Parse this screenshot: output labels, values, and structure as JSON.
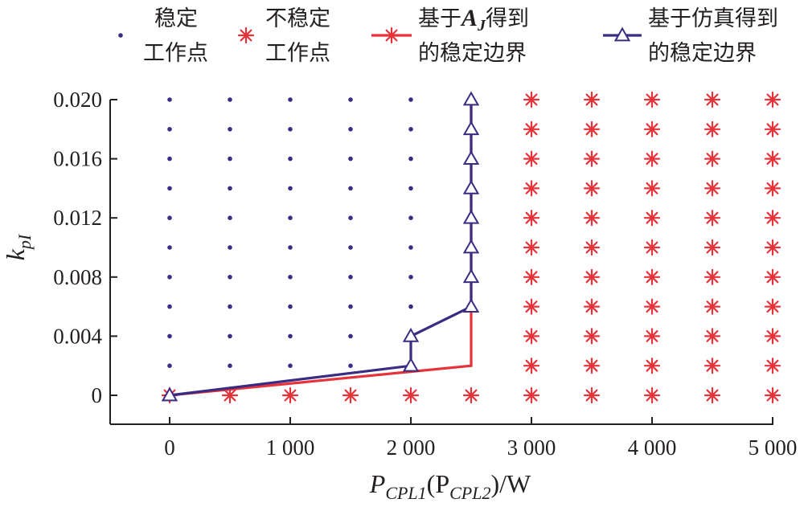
{
  "chart_data": {
    "type": "scatter",
    "title": "",
    "xlabel": {
      "main": "P",
      "sub1": "CPL1",
      "mid": "(P",
      "sub2": "CPL2",
      "tail": ")/W"
    },
    "ylabel": {
      "main": "k",
      "sub": "pI"
    },
    "xlim": [
      -500,
      5000
    ],
    "ylim": [
      -0.0017,
      0.02
    ],
    "x_ticks": [
      0,
      1000,
      2000,
      3000,
      4000,
      5000
    ],
    "x_tick_labels": [
      "0",
      "1 000",
      "2 000",
      "3 000",
      "4 000",
      "5 000"
    ],
    "y_ticks": [
      0,
      0.004,
      0.008,
      0.012,
      0.016,
      0.02
    ],
    "y_tick_labels": [
      "0",
      "0.004",
      "0.008",
      "0.012",
      "0.016",
      "0.020"
    ],
    "grid": false,
    "legend_placement": "top",
    "legend": [
      {
        "key": "stable",
        "lines": [
          "稳定",
          "工作点"
        ],
        "marker": "dot",
        "color": "#3b2c83"
      },
      {
        "key": "unstable",
        "lines": [
          "不稳定",
          "工作点"
        ],
        "marker": "asterisk",
        "color": "#e8323a"
      },
      {
        "key": "aj",
        "lines": [
          "基于A_J得到",
          "的稳定边界"
        ],
        "line1_prefix": "基于",
        "line1_math": "A",
        "line1_math_sub": "J",
        "line1_suffix": "得到",
        "line2": "的稳定边界",
        "marker": "asterisk-line",
        "color": "#e8323a"
      },
      {
        "key": "sim",
        "lines": [
          "基于仿真得到",
          "的稳定边界"
        ],
        "marker": "triangle-line",
        "color": "#3b2c83"
      }
    ],
    "series": [
      {
        "name": "稳定工作点",
        "marker": "dot",
        "color": "#3b2c83",
        "points": [
          [
            0,
            0.002
          ],
          [
            0,
            0.004
          ],
          [
            0,
            0.006
          ],
          [
            0,
            0.008
          ],
          [
            0,
            0.01
          ],
          [
            0,
            0.012
          ],
          [
            0,
            0.014
          ],
          [
            0,
            0.016
          ],
          [
            0,
            0.018
          ],
          [
            0,
            0.02
          ],
          [
            500,
            0.002
          ],
          [
            500,
            0.004
          ],
          [
            500,
            0.006
          ],
          [
            500,
            0.008
          ],
          [
            500,
            0.01
          ],
          [
            500,
            0.012
          ],
          [
            500,
            0.014
          ],
          [
            500,
            0.016
          ],
          [
            500,
            0.018
          ],
          [
            500,
            0.02
          ],
          [
            1000,
            0.002
          ],
          [
            1000,
            0.004
          ],
          [
            1000,
            0.006
          ],
          [
            1000,
            0.008
          ],
          [
            1000,
            0.01
          ],
          [
            1000,
            0.012
          ],
          [
            1000,
            0.014
          ],
          [
            1000,
            0.016
          ],
          [
            1000,
            0.018
          ],
          [
            1000,
            0.02
          ],
          [
            1500,
            0.002
          ],
          [
            1500,
            0.004
          ],
          [
            1500,
            0.006
          ],
          [
            1500,
            0.008
          ],
          [
            1500,
            0.01
          ],
          [
            1500,
            0.012
          ],
          [
            1500,
            0.014
          ],
          [
            1500,
            0.016
          ],
          [
            1500,
            0.018
          ],
          [
            1500,
            0.02
          ],
          [
            2000,
            0.006
          ],
          [
            2000,
            0.008
          ],
          [
            2000,
            0.01
          ],
          [
            2000,
            0.012
          ],
          [
            2000,
            0.014
          ],
          [
            2000,
            0.016
          ],
          [
            2000,
            0.018
          ],
          [
            2000,
            0.02
          ]
        ]
      },
      {
        "name": "不稳定工作点",
        "marker": "asterisk",
        "color": "#e8323a",
        "points": [
          [
            500,
            0
          ],
          [
            1000,
            0
          ],
          [
            1500,
            0
          ],
          [
            2000,
            0
          ],
          [
            2500,
            0
          ],
          [
            3000,
            0
          ],
          [
            3000,
            0.002
          ],
          [
            3000,
            0.004
          ],
          [
            3000,
            0.006
          ],
          [
            3000,
            0.008
          ],
          [
            3000,
            0.01
          ],
          [
            3000,
            0.012
          ],
          [
            3000,
            0.014
          ],
          [
            3000,
            0.016
          ],
          [
            3000,
            0.018
          ],
          [
            3000,
            0.02
          ],
          [
            3500,
            0
          ],
          [
            3500,
            0.002
          ],
          [
            3500,
            0.004
          ],
          [
            3500,
            0.006
          ],
          [
            3500,
            0.008
          ],
          [
            3500,
            0.01
          ],
          [
            3500,
            0.012
          ],
          [
            3500,
            0.014
          ],
          [
            3500,
            0.016
          ],
          [
            3500,
            0.018
          ],
          [
            3500,
            0.02
          ],
          [
            4000,
            0
          ],
          [
            4000,
            0.002
          ],
          [
            4000,
            0.004
          ],
          [
            4000,
            0.006
          ],
          [
            4000,
            0.008
          ],
          [
            4000,
            0.01
          ],
          [
            4000,
            0.012
          ],
          [
            4000,
            0.014
          ],
          [
            4000,
            0.016
          ],
          [
            4000,
            0.018
          ],
          [
            4000,
            0.02
          ],
          [
            4500,
            0
          ],
          [
            4500,
            0.002
          ],
          [
            4500,
            0.004
          ],
          [
            4500,
            0.006
          ],
          [
            4500,
            0.008
          ],
          [
            4500,
            0.01
          ],
          [
            4500,
            0.012
          ],
          [
            4500,
            0.014
          ],
          [
            4500,
            0.016
          ],
          [
            4500,
            0.018
          ],
          [
            4500,
            0.02
          ],
          [
            5000,
            0
          ],
          [
            5000,
            0.002
          ],
          [
            5000,
            0.004
          ],
          [
            5000,
            0.006
          ],
          [
            5000,
            0.008
          ],
          [
            5000,
            0.01
          ],
          [
            5000,
            0.012
          ],
          [
            5000,
            0.014
          ],
          [
            5000,
            0.016
          ],
          [
            5000,
            0.018
          ],
          [
            5000,
            0.02
          ]
        ]
      },
      {
        "name": "基于A_J得到的稳定边界",
        "marker": "asterisk-line",
        "color": "#e8323a",
        "points": [
          [
            0,
            0
          ],
          [
            2500,
            0.002
          ],
          [
            2500,
            0.004
          ],
          [
            2500,
            0.006
          ],
          [
            2500,
            0.008
          ],
          [
            2500,
            0.01
          ],
          [
            2500,
            0.012
          ],
          [
            2500,
            0.014
          ],
          [
            2500,
            0.016
          ],
          [
            2500,
            0.018
          ],
          [
            2500,
            0.02
          ]
        ]
      },
      {
        "name": "基于仿真得到的稳定边界",
        "marker": "triangle-line",
        "color": "#3b2c83",
        "points": [
          [
            0,
            0
          ],
          [
            2000,
            0.002
          ],
          [
            2000,
            0.004
          ],
          [
            2500,
            0.006
          ],
          [
            2500,
            0.008
          ],
          [
            2500,
            0.01
          ],
          [
            2500,
            0.012
          ],
          [
            2500,
            0.014
          ],
          [
            2500,
            0.016
          ],
          [
            2500,
            0.018
          ],
          [
            2500,
            0.02
          ]
        ]
      }
    ]
  }
}
